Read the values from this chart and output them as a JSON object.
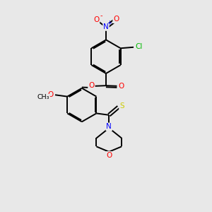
{
  "background_color": "#e8e8e8",
  "bond_color": "#000000",
  "atom_colors": {
    "O": "#ff0000",
    "N": "#0000ff",
    "Cl": "#00bb00",
    "S": "#cccc00",
    "C": "#000000"
  },
  "figsize": [
    3.0,
    3.0
  ],
  "dpi": 100
}
